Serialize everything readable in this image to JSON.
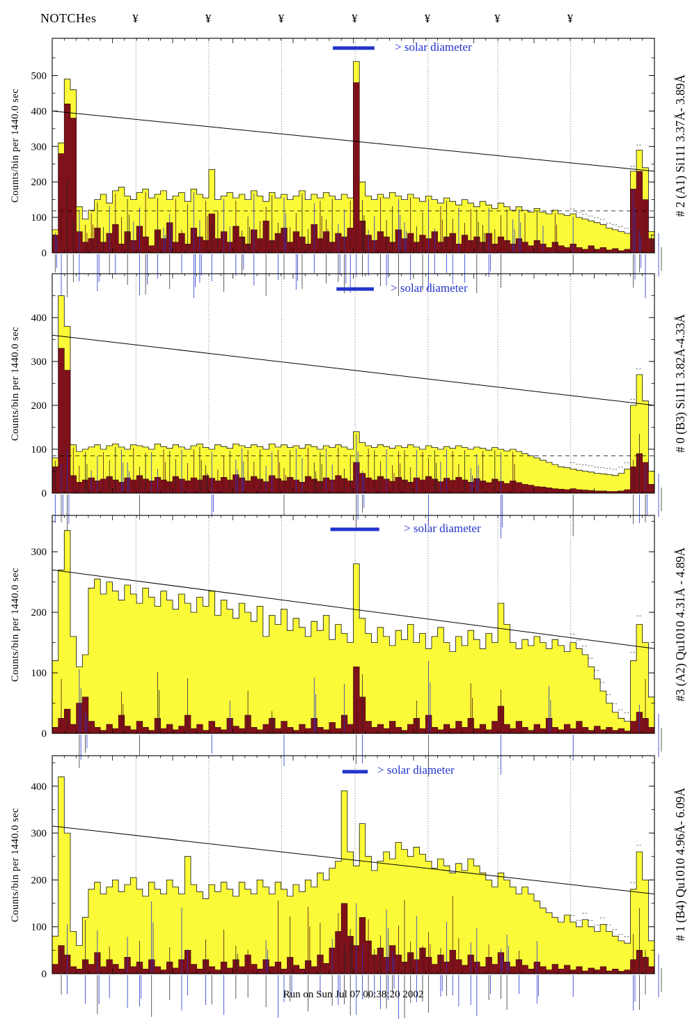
{
  "header": {
    "title": "NOTCHes",
    "notch_symbol": "¥"
  },
  "footer": {
    "run_label": "Run on Sun Jul 07 00:38:20 2002"
  },
  "colors": {
    "yellow": "#fafa38",
    "maroon": "#7e1119",
    "blue": "#2233cc",
    "axis": "#000000"
  },
  "chart_data": {
    "type": "area",
    "description": "Four stacked X-ray spectrometer quick-look histogram panels: total counts per bin (yellow) and flagged subset (dark red) vs detector bin, with NOTCH positions (dotted vertical lines), a declining trend line, dashed background level, and a blue solar-diameter scale bar in each panel.",
    "n_bins": 100,
    "notches_x": [
      0.139,
      0.26,
      0.381,
      0.503,
      0.624,
      0.74,
      0.861
    ],
    "panels": [
      {
        "right_label": "# 2 (A1) Si111 3.37Å- 3.89Å",
        "ylabel": "Counts/bin per 1440.0 sec",
        "ylim": [
          0,
          605
        ],
        "yticks": [
          0,
          100,
          200,
          300,
          400,
          500
        ],
        "trend_line": [
          400,
          230
        ],
        "dashed_level": 118,
        "solar_bar": {
          "x1": 0.466,
          "x2": 0.535,
          "label": "> solar diameter"
        },
        "series": {
          "yellow": [
            65,
            310,
            490,
            460,
            130,
            95,
            120,
            150,
            165,
            140,
            175,
            185,
            160,
            150,
            170,
            180,
            155,
            165,
            175,
            150,
            160,
            170,
            145,
            180,
            165,
            155,
            235,
            150,
            160,
            170,
            155,
            165,
            150,
            175,
            160,
            145,
            170,
            155,
            165,
            150,
            160,
            175,
            150,
            165,
            155,
            170,
            160,
            150,
            165,
            155,
            540,
            200,
            160,
            150,
            165,
            155,
            170,
            160,
            150,
            165,
            155,
            145,
            160,
            150,
            140,
            155,
            145,
            135,
            150,
            140,
            130,
            145,
            135,
            125,
            140,
            130,
            120,
            130,
            120,
            115,
            125,
            115,
            110,
            120,
            110,
            105,
            110,
            100,
            95,
            90,
            85,
            80,
            70,
            65,
            60,
            55,
            230,
            290,
            240,
            60
          ],
          "maroon": [
            50,
            280,
            420,
            380,
            60,
            30,
            40,
            70,
            30,
            55,
            80,
            25,
            60,
            35,
            75,
            45,
            20,
            65,
            40,
            85,
            30,
            55,
            25,
            70,
            45,
            35,
            110,
            40,
            60,
            30,
            75,
            45,
            25,
            65,
            40,
            90,
            35,
            55,
            70,
            30,
            60,
            45,
            25,
            80,
            40,
            60,
            30,
            55,
            45,
            70,
            480,
            90,
            50,
            35,
            60,
            45,
            30,
            65,
            40,
            55,
            30,
            50,
            40,
            60,
            30,
            45,
            55,
            25,
            50,
            35,
            45,
            30,
            55,
            25,
            45,
            35,
            25,
            40,
            30,
            20,
            35,
            25,
            15,
            30,
            20,
            15,
            25,
            15,
            10,
            20,
            10,
            15,
            8,
            12,
            6,
            10,
            180,
            230,
            150,
            40
          ]
        }
      },
      {
        "right_label": "# 0 (B3) Si111 3.82Å-4.33Å",
        "ylabel": "Counts/bin per 1440.0 sec",
        "ylim": [
          0,
          500
        ],
        "yticks": [
          0,
          100,
          200,
          300,
          400
        ],
        "trend_line": [
          360,
          200
        ],
        "dashed_level": 85,
        "solar_bar": {
          "x1": 0.472,
          "x2": 0.534,
          "label": "> solar diameter"
        },
        "series": {
          "yellow": [
            80,
            450,
            380,
            110,
            95,
            100,
            105,
            110,
            100,
            108,
            112,
            105,
            100,
            110,
            108,
            105,
            100,
            112,
            106,
            102,
            110,
            105,
            100,
            108,
            112,
            104,
            100,
            110,
            106,
            102,
            112,
            108,
            104,
            110,
            106,
            100,
            112,
            105,
            110,
            104,
            108,
            102,
            110,
            106,
            100,
            108,
            104,
            110,
            105,
            100,
            140,
            115,
            108,
            104,
            110,
            106,
            102,
            108,
            104,
            110,
            105,
            100,
            108,
            104,
            100,
            106,
            102,
            108,
            104,
            100,
            105,
            102,
            98,
            104,
            100,
            96,
            100,
            95,
            90,
            85,
            80,
            75,
            70,
            65,
            60,
            58,
            55,
            52,
            50,
            48,
            45,
            44,
            42,
            40,
            45,
            55,
            200,
            270,
            210,
            50
          ],
          "maroon": [
            60,
            330,
            280,
            40,
            25,
            30,
            35,
            28,
            32,
            38,
            30,
            25,
            35,
            30,
            40,
            32,
            28,
            36,
            30,
            26,
            38,
            32,
            28,
            35,
            30,
            40,
            34,
            28,
            36,
            30,
            42,
            35,
            28,
            38,
            32,
            26,
            40,
            33,
            28,
            36,
            30,
            25,
            38,
            32,
            27,
            35,
            30,
            40,
            33,
            28,
            70,
            45,
            35,
            30,
            38,
            32,
            27,
            36,
            30,
            25,
            35,
            30,
            38,
            32,
            26,
            34,
            29,
            36,
            30,
            25,
            33,
            28,
            24,
            32,
            27,
            22,
            28,
            24,
            20,
            18,
            15,
            14,
            12,
            10,
            9,
            8,
            10,
            8,
            7,
            6,
            5,
            5,
            4,
            4,
            5,
            8,
            60,
            90,
            70,
            20
          ]
        }
      },
      {
        "right_label": "#3 (A2) Qu1010 4.31Å - 4.89Å",
        "ylabel": "Counts/bin per 1440.0 sec",
        "ylim": [
          0,
          360
        ],
        "yticks": [
          0,
          100,
          200,
          300
        ],
        "trend_line": [
          270,
          140
        ],
        "dashed_level": null,
        "solar_bar": {
          "x1": 0.462,
          "x2": 0.543,
          "label": "> solar diameter"
        },
        "series": {
          "yellow": [
            120,
            270,
            335,
            160,
            110,
            130,
            240,
            255,
            230,
            250,
            235,
            220,
            245,
            230,
            215,
            240,
            225,
            210,
            235,
            220,
            205,
            230,
            215,
            200,
            225,
            210,
            235,
            195,
            220,
            205,
            190,
            215,
            200,
            185,
            210,
            160,
            195,
            180,
            205,
            170,
            190,
            175,
            160,
            185,
            170,
            195,
            155,
            180,
            165,
            150,
            280,
            190,
            165,
            150,
            175,
            160,
            145,
            170,
            155,
            180,
            150,
            165,
            140,
            160,
            175,
            150,
            135,
            160,
            145,
            170,
            155,
            140,
            165,
            150,
            215,
            180,
            150,
            140,
            155,
            145,
            160,
            150,
            140,
            155,
            145,
            135,
            150,
            140,
            130,
            110,
            90,
            70,
            50,
            35,
            25,
            20,
            120,
            180,
            150,
            60
          ],
          "maroon": [
            10,
            25,
            40,
            15,
            50,
            60,
            20,
            10,
            5,
            15,
            8,
            30,
            12,
            6,
            20,
            10,
            5,
            25,
            8,
            15,
            6,
            12,
            30,
            8,
            15,
            5,
            20,
            10,
            6,
            25,
            12,
            8,
            30,
            10,
            6,
            15,
            25,
            8,
            20,
            10,
            5,
            15,
            8,
            25,
            10,
            6,
            18,
            8,
            30,
            15,
            110,
            60,
            20,
            10,
            15,
            8,
            20,
            10,
            5,
            15,
            25,
            8,
            30,
            10,
            6,
            15,
            8,
            20,
            10,
            25,
            8,
            15,
            6,
            20,
            45,
            15,
            8,
            20,
            10,
            5,
            15,
            8,
            25,
            10,
            6,
            15,
            8,
            20,
            10,
            5,
            12,
            6,
            10,
            5,
            8,
            4,
            20,
            35,
            25,
            10
          ]
        }
      },
      {
        "right_label": "# 1 (B4) Qu1010 4.96Å- 6.09Å",
        "ylabel": "Counts/bin per 1440.0 sec",
        "ylim": [
          0,
          465
        ],
        "yticks": [
          0,
          100,
          200,
          300,
          400
        ],
        "trend_line": [
          315,
          170
        ],
        "dashed_level": null,
        "solar_bar": {
          "x1": 0.482,
          "x2": 0.524,
          "label": "> solar diameter"
        },
        "series": {
          "yellow": [
            80,
            420,
            300,
            90,
            60,
            120,
            180,
            195,
            170,
            185,
            200,
            175,
            190,
            205,
            180,
            165,
            195,
            180,
            170,
            200,
            185,
            170,
            250,
            190,
            175,
            160,
            190,
            175,
            195,
            180,
            165,
            195,
            180,
            170,
            200,
            185,
            170,
            195,
            180,
            165,
            190,
            175,
            200,
            185,
            215,
            200,
            225,
            240,
            390,
            260,
            230,
            320,
            250,
            220,
            240,
            260,
            245,
            280,
            265,
            250,
            270,
            255,
            240,
            225,
            245,
            230,
            215,
            235,
            220,
            245,
            230,
            215,
            200,
            185,
            215,
            200,
            185,
            170,
            185,
            170,
            155,
            140,
            130,
            120,
            110,
            125,
            110,
            100,
            115,
            100,
            90,
            105,
            90,
            80,
            70,
            65,
            180,
            260,
            200,
            70
          ],
          "maroon": [
            20,
            60,
            40,
            15,
            10,
            30,
            20,
            45,
            15,
            30,
            20,
            10,
            35,
            15,
            25,
            10,
            30,
            15,
            8,
            25,
            12,
            30,
            50,
            20,
            10,
            30,
            15,
            8,
            25,
            12,
            30,
            15,
            40,
            20,
            10,
            30,
            15,
            25,
            10,
            35,
            18,
            10,
            28,
            15,
            40,
            22,
            55,
            90,
            150,
            80,
            60,
            120,
            70,
            40,
            55,
            35,
            60,
            40,
            25,
            45,
            30,
            55,
            35,
            20,
            40,
            25,
            50,
            30,
            18,
            40,
            25,
            15,
            35,
            20,
            45,
            25,
            15,
            30,
            18,
            10,
            25,
            15,
            8,
            20,
            10,
            18,
            8,
            15,
            6,
            12,
            8,
            15,
            6,
            10,
            5,
            8,
            30,
            50,
            35,
            15
          ]
        }
      }
    ]
  }
}
